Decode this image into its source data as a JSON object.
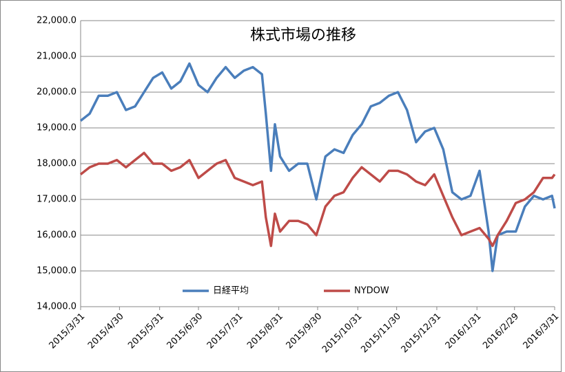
{
  "chart_data": {
    "type": "line",
    "title": "株式市場の推移",
    "x": [
      "2015/3/31",
      "2015/4/7",
      "2015/4/14",
      "2015/4/21",
      "2015/4/28",
      "2015/5/5",
      "2015/5/12",
      "2015/5/19",
      "2015/5/26",
      "2015/6/2",
      "2015/6/9",
      "2015/6/16",
      "2015/6/23",
      "2015/6/30",
      "2015/7/7",
      "2015/7/14",
      "2015/7/21",
      "2015/7/28",
      "2015/8/4",
      "2015/8/11",
      "2015/8/18",
      "2015/8/21",
      "2015/8/25",
      "2015/8/28",
      "2015/9/1",
      "2015/9/8",
      "2015/9/15",
      "2015/9/22",
      "2015/9/29",
      "2015/10/6",
      "2015/10/13",
      "2015/10/20",
      "2015/10/27",
      "2015/11/3",
      "2015/11/10",
      "2015/11/17",
      "2015/11/24",
      "2015/12/1",
      "2015/12/8",
      "2015/12/15",
      "2015/12/22",
      "2015/12/29",
      "2016/1/5",
      "2016/1/12",
      "2016/1/19",
      "2016/1/26",
      "2016/2/2",
      "2016/2/9",
      "2016/2/12",
      "2016/2/16",
      "2016/2/23",
      "2016/3/1",
      "2016/3/8",
      "2016/3/15",
      "2016/3/22",
      "2016/3/29",
      "2016/3/31"
    ],
    "series": [
      {
        "name": "日経平均",
        "color": "#4a7ebb",
        "values": [
          19200,
          19400,
          19900,
          19900,
          20000,
          19500,
          19600,
          20000,
          20400,
          20550,
          20100,
          20300,
          20800,
          20200,
          20000,
          20400,
          20700,
          20400,
          20600,
          20700,
          20500,
          19400,
          17800,
          19100,
          18200,
          17800,
          18000,
          18000,
          17000,
          18200,
          18400,
          18300,
          18800,
          19100,
          19600,
          19700,
          19900,
          20000,
          19500,
          18600,
          18900,
          19000,
          18400,
          17200,
          17000,
          17100,
          17800,
          16100,
          15000,
          16000,
          16100,
          16100,
          16800,
          17100,
          17000,
          17100,
          16750
        ]
      },
      {
        "name": "NYDOW",
        "color": "#be4b48",
        "values": [
          17700,
          17900,
          18000,
          18000,
          18100,
          17900,
          18100,
          18300,
          18000,
          18000,
          17800,
          17900,
          18100,
          17600,
          17800,
          18000,
          18100,
          17600,
          17500,
          17400,
          17500,
          16500,
          15700,
          16600,
          16100,
          16400,
          16400,
          16300,
          16000,
          16800,
          17100,
          17200,
          17600,
          17900,
          17700,
          17500,
          17800,
          17800,
          17700,
          17500,
          17400,
          17700,
          17100,
          16500,
          16000,
          16100,
          16200,
          15900,
          15700,
          16000,
          16400,
          16900,
          17000,
          17200,
          17600,
          17600,
          17700
        ]
      }
    ],
    "xticks": [
      "2015/3/31",
      "2015/4/30",
      "2015/5/31",
      "2015/6/30",
      "2015/7/31",
      "2015/8/31",
      "2015/9/30",
      "2015/10/31",
      "2015/11/30",
      "2015/12/31",
      "2016/1/31",
      "2016/2/29",
      "2016/3/31"
    ],
    "ylim": [
      14000,
      22000
    ],
    "yticks": [
      {
        "value": 14000,
        "label": "14,000.0"
      },
      {
        "value": 15000,
        "label": "15,000.0"
      },
      {
        "value": 16000,
        "label": "16,000.0"
      },
      {
        "value": 17000,
        "label": "17,000.0"
      },
      {
        "value": 18000,
        "label": "18,000.0"
      },
      {
        "value": 19000,
        "label": "19,000.0"
      },
      {
        "value": 20000,
        "label": "20,000.0"
      },
      {
        "value": 21000,
        "label": "21,000.0"
      },
      {
        "value": 22000,
        "label": "22,000.0"
      }
    ],
    "grid": true,
    "legend": "bottom"
  }
}
